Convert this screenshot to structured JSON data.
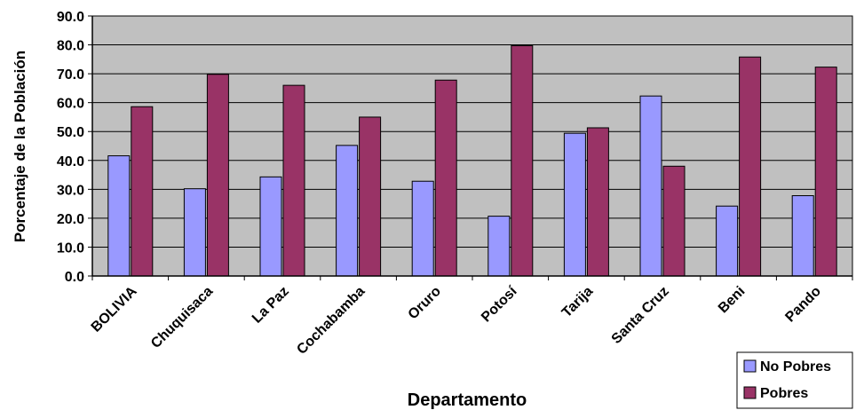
{
  "chart_data": {
    "type": "bar",
    "title": "",
    "xlabel": "Departamento",
    "ylabel": "Porcentaje de la Población",
    "ylim": [
      0,
      90
    ],
    "yticks": [
      "0.0",
      "10.0",
      "20.0",
      "30.0",
      "40.0",
      "50.0",
      "60.0",
      "70.0",
      "80.0",
      "90.0"
    ],
    "grid": true,
    "legend_position": "bottom-right",
    "categories": [
      "BOLIVIA",
      "Chuquisaca",
      "La Paz",
      "Cochabamba",
      "Oruro",
      "Potosí",
      "Tarija",
      "Santa Cruz",
      "Beni",
      "Pando"
    ],
    "series": [
      {
        "name": "No Pobres",
        "color": "#9999ff",
        "values": [
          41.6,
          30.2,
          34.3,
          45.2,
          32.8,
          20.7,
          49.4,
          62.3,
          24.2,
          27.8
        ]
      },
      {
        "name": "Pobres",
        "color": "#993366",
        "values": [
          58.6,
          69.8,
          66.0,
          55.0,
          67.8,
          79.7,
          51.3,
          38.0,
          75.8,
          72.3
        ]
      }
    ],
    "plot_background": "#c0c0c0"
  }
}
